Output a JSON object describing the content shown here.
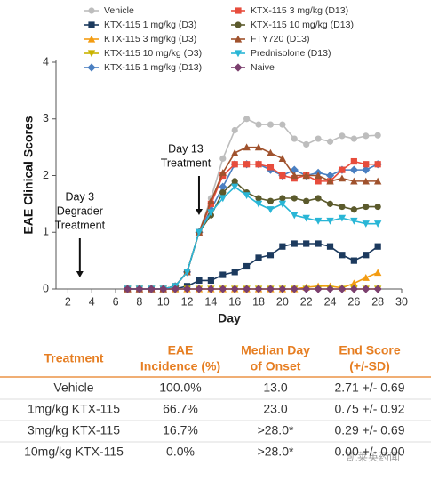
{
  "chart_data": {
    "type": "line",
    "x_label": "Day",
    "y_label": "EAE Clinical Scores",
    "xlim": [
      1,
      30
    ],
    "xticks": [
      2,
      4,
      6,
      8,
      10,
      12,
      14,
      16,
      18,
      20,
      22,
      24,
      26,
      28,
      30
    ],
    "ylim": [
      0,
      4
    ],
    "yticks": [
      0,
      1,
      2,
      3,
      4
    ],
    "x": [
      7,
      8,
      9,
      10,
      11,
      12,
      13,
      14,
      15,
      16,
      17,
      18,
      19,
      20,
      21,
      22,
      23,
      24,
      25,
      26,
      27,
      28
    ],
    "annotations": [
      {
        "lines": [
          "Day 3",
          "Degrader",
          "Treatment"
        ],
        "x": 3
      },
      {
        "lines": [
          "Day 13",
          "Treatment"
        ],
        "x": 13
      }
    ],
    "series": [
      {
        "name": "Vehicle",
        "color": "#bdbdbd",
        "marker": "circle",
        "values": [
          0,
          0,
          0,
          0,
          0.05,
          0.3,
          1.0,
          1.6,
          2.3,
          2.8,
          3.0,
          2.9,
          2.9,
          2.9,
          2.65,
          2.55,
          2.65,
          2.6,
          2.7,
          2.65,
          2.7,
          2.71
        ]
      },
      {
        "name": "KTX-115 1 mg/kg (D3)",
        "color": "#1c3a5e",
        "marker": "square",
        "values": [
          0,
          0,
          0,
          0,
          0,
          0.05,
          0.15,
          0.15,
          0.25,
          0.3,
          0.4,
          0.55,
          0.6,
          0.75,
          0.8,
          0.8,
          0.8,
          0.75,
          0.6,
          0.5,
          0.6,
          0.75
        ]
      },
      {
        "name": "KTX-115 3 mg/kg (D3)",
        "color": "#f39c12",
        "marker": "triangle",
        "values": [
          0,
          0,
          0,
          0,
          0,
          0,
          0,
          0,
          0,
          0,
          0,
          0,
          0,
          0,
          0,
          0.03,
          0.05,
          0.05,
          0.02,
          0.1,
          0.2,
          0.29
        ]
      },
      {
        "name": "KTX-115 10 mg/kg (D3)",
        "color": "#c9b300",
        "marker": "triangle-down",
        "values": [
          0,
          0,
          0,
          0,
          0,
          0,
          0,
          0,
          0,
          0,
          0,
          0,
          0,
          0,
          0,
          0,
          0,
          0,
          0,
          0,
          0,
          0
        ]
      },
      {
        "name": "KTX-115 1 mg/kg (D13)",
        "color": "#4a7fc1",
        "marker": "diamond",
        "values": [
          0,
          0,
          0,
          0,
          0.05,
          0.3,
          1.0,
          1.4,
          1.8,
          2.2,
          2.2,
          2.2,
          2.1,
          2.0,
          2.1,
          2.0,
          2.05,
          2.0,
          2.1,
          2.1,
          2.1,
          2.2
        ]
      },
      {
        "name": "KTX-115 3 mg/kg (D13)",
        "color": "#e74c3c",
        "marker": "square",
        "values": [
          0,
          0,
          0,
          0,
          0.05,
          0.3,
          1.0,
          1.5,
          2.0,
          2.2,
          2.2,
          2.2,
          2.15,
          2.0,
          1.95,
          2.0,
          1.9,
          1.9,
          2.1,
          2.25,
          2.2,
          2.2
        ]
      },
      {
        "name": "KTX-115 10 mg/kg (D13)",
        "color": "#5b5a2c",
        "marker": "circle",
        "values": [
          0,
          0,
          0,
          0,
          0.05,
          0.3,
          1.0,
          1.3,
          1.7,
          1.9,
          1.7,
          1.6,
          1.55,
          1.6,
          1.6,
          1.55,
          1.6,
          1.5,
          1.45,
          1.4,
          1.45,
          1.45
        ]
      },
      {
        "name": "FTY720 (D13)",
        "color": "#a0522d",
        "marker": "triangle",
        "values": [
          0,
          0,
          0,
          0,
          0.05,
          0.3,
          1.0,
          1.55,
          2.05,
          2.4,
          2.5,
          2.5,
          2.4,
          2.3,
          2.0,
          2.0,
          2.0,
          1.9,
          1.95,
          1.9,
          1.9,
          1.9
        ]
      },
      {
        "name": "Prednisolone (D13)",
        "color": "#29b6d6",
        "marker": "triangle-down",
        "values": [
          0,
          0,
          0,
          0,
          0.05,
          0.3,
          1.0,
          1.35,
          1.6,
          1.8,
          1.65,
          1.5,
          1.4,
          1.5,
          1.3,
          1.25,
          1.2,
          1.2,
          1.25,
          1.2,
          1.15,
          1.15
        ]
      },
      {
        "name": "Naive",
        "color": "#7b3f6e",
        "marker": "diamond",
        "values": [
          0,
          0,
          0,
          0,
          0,
          0,
          0,
          0,
          0,
          0,
          0,
          0,
          0,
          0,
          0,
          0,
          0,
          0,
          0,
          0,
          0,
          0
        ]
      }
    ]
  },
  "table": {
    "columns": [
      [
        "Treatment"
      ],
      [
        "EAE",
        "Incidence (%)"
      ],
      [
        "Median Day",
        "of Onset"
      ],
      [
        "End Score",
        "(+/-SD)"
      ]
    ],
    "rows": [
      [
        "Vehicle",
        "100.0%",
        "13.0",
        "2.71 +/- 0.69"
      ],
      [
        "1mg/kg KTX-115",
        "66.7%",
        "23.0",
        "0.75 +/- 0.92"
      ],
      [
        "3mg/kg KTX-115",
        "16.7%",
        ">28.0*",
        "0.29 +/- 0.69"
      ],
      [
        "10mg/kg KTX-115",
        "0.0%",
        ">28.0*",
        "0.00 +/- 0.00"
      ]
    ]
  },
  "watermark": "凯莱英药闻"
}
